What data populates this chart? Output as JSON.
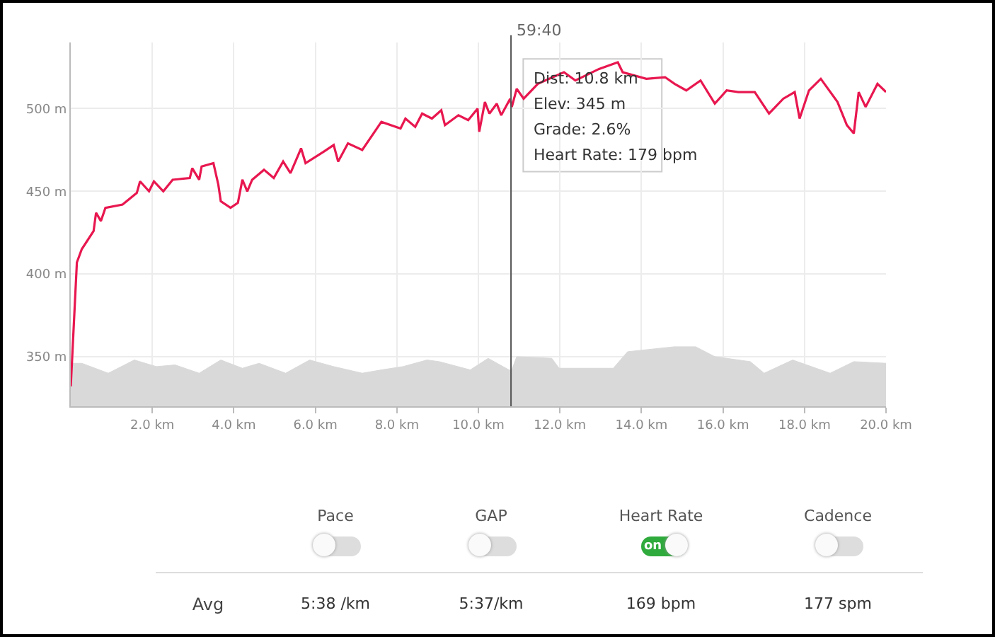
{
  "chart_data": {
    "type": "line",
    "xlim": [
      0,
      20
    ],
    "ylim": [
      320,
      540
    ],
    "xticks": [
      {
        "value": 2,
        "label": "2.0 km"
      },
      {
        "value": 4,
        "label": "4.0 km"
      },
      {
        "value": 6,
        "label": "6.0 km"
      },
      {
        "value": 8,
        "label": "8.0 km"
      },
      {
        "value": 10,
        "label": "10.0 km"
      },
      {
        "value": 12,
        "label": "12.0 km"
      },
      {
        "value": 14,
        "label": "14.0 km"
      },
      {
        "value": 16,
        "label": "16.0 km"
      },
      {
        "value": 18,
        "label": "18.0 km"
      },
      {
        "value": 20,
        "label": "20.0 km"
      }
    ],
    "yticks": [
      {
        "value": 350,
        "label": "350 m"
      },
      {
        "value": 400,
        "label": "400 m"
      },
      {
        "value": 450,
        "label": "450 m"
      },
      {
        "value": 500,
        "label": "500 m"
      }
    ],
    "grid": true,
    "marker": "none",
    "line_style": "solid",
    "series": [
      {
        "type": "area",
        "color": "#d9d9d9",
        "x": [
          0,
          0.27,
          0.92,
          1.56,
          2.1,
          2.56,
          3.15,
          3.68,
          4.21,
          4.62,
          5.27,
          5.86,
          6.45,
          7.15,
          7.62,
          8.15,
          8.74,
          9.04,
          9.8,
          10.24,
          10.75,
          10.82,
          10.94,
          11.8,
          11.98,
          13.31,
          13.66,
          14.81,
          15.33,
          15.8,
          16.67,
          17.01,
          17.71,
          18.63,
          19.21,
          20
        ],
        "values": [
          346,
          346,
          340,
          348,
          344,
          345,
          340,
          348,
          343,
          346,
          340,
          348,
          344,
          340,
          342,
          344,
          348,
          347,
          342,
          349,
          342,
          342,
          350,
          349,
          343,
          343,
          353,
          356,
          356,
          350,
          347,
          340,
          348,
          340,
          347,
          346
        ]
      },
      {
        "color": "#e8174f",
        "x": [
          0,
          0.15,
          0.27,
          0.56,
          0.62,
          0.74,
          0.85,
          1.27,
          1.62,
          1.7,
          1.92,
          2.04,
          2.27,
          2.5,
          2.92,
          2.98,
          3.15,
          3.21,
          3.5,
          3.62,
          3.68,
          3.92,
          4.1,
          4.21,
          4.33,
          4.45,
          4.74,
          4.98,
          5.21,
          5.39,
          5.65,
          5.76,
          6.21,
          6.45,
          6.56,
          6.8,
          7.15,
          7.62,
          8.09,
          8.21,
          8.45,
          8.62,
          8.86,
          9.09,
          9.18,
          9.51,
          9.75,
          9.98,
          10.02,
          10.16,
          10.27,
          10.45,
          10.56,
          10.78,
          10.82,
          10.94,
          11.11,
          11.46,
          12.1,
          12.38,
          12.96,
          13.42,
          13.54,
          14.12,
          14.58,
          14.81,
          15.1,
          15.45,
          15.8,
          16.09,
          16.38,
          16.78,
          17.13,
          17.48,
          17.76,
          17.88,
          18.11,
          18.4,
          18.81,
          19.04,
          19.21,
          19.33,
          19.5,
          19.79,
          20
        ],
        "values": [
          332,
          407,
          415,
          426,
          437,
          432,
          440,
          442,
          449,
          456,
          450,
          456,
          450,
          457,
          458,
          464,
          457,
          465,
          467,
          454,
          444,
          440,
          443,
          457,
          450,
          457,
          463,
          458,
          468,
          461,
          476,
          467,
          474,
          478,
          468,
          479,
          475,
          492,
          488,
          494,
          489,
          497,
          494,
          499,
          490,
          496,
          493,
          500,
          486,
          504,
          497,
          503,
          496,
          506,
          501,
          512,
          506,
          515,
          522,
          517,
          524,
          528,
          522,
          518,
          519,
          515,
          511,
          517,
          503,
          511,
          510,
          510,
          497,
          506,
          510,
          494,
          511,
          518,
          504,
          490,
          485,
          510,
          501,
          515,
          510
        ]
      }
    ],
    "ref_lines": [
      {
        "axis": "x",
        "value": 10.8,
        "color": "#555555"
      }
    ],
    "annotations": [
      "Dist: 10.8 km",
      "Elev: 345 m",
      "Grade: 2.6%",
      "Heart Rate: 179 bpm",
      "Pace",
      "GAP",
      "Heart Rate",
      "Cadence",
      "on",
      "Avg",
      "5:38 /km",
      "5:37/km",
      "169 bpm",
      "177 spm",
      "59:40"
    ]
  }
}
